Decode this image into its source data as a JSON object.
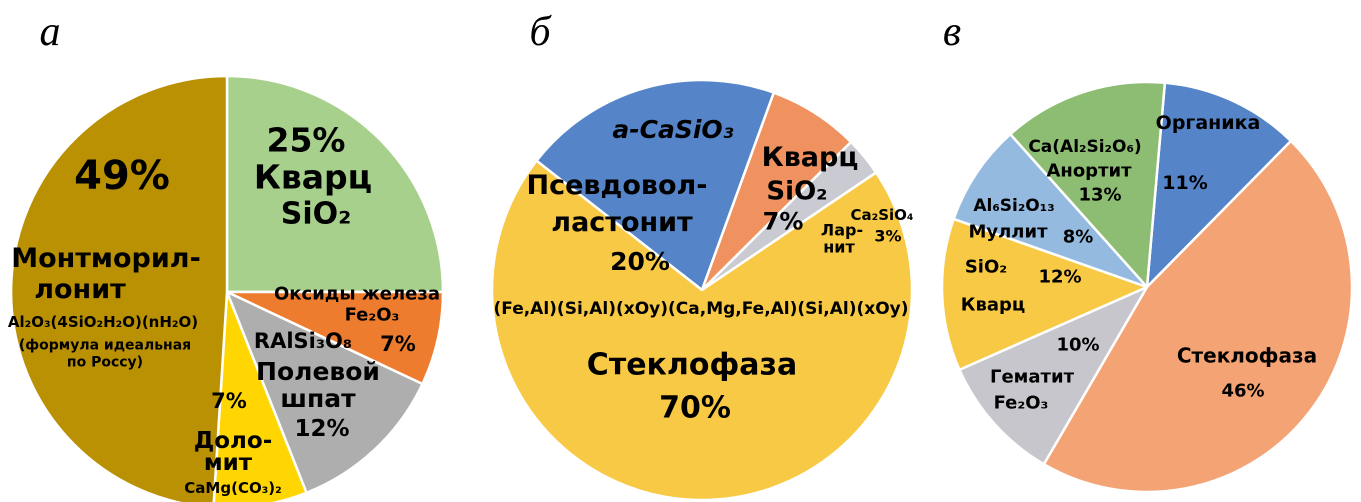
{
  "page": {
    "background": "#ffffff"
  },
  "panels": [
    {
      "letter": "а"
    },
    {
      "letter": "б"
    },
    {
      "letter": "в"
    }
  ],
  "chart_data": [
    {
      "type": "pie",
      "panel": "а",
      "title": "",
      "start_angle_deg": 0,
      "direction": "clockwise",
      "slices": [
        {
          "name": "Кварц",
          "formula": "SiO₂",
          "value": 25,
          "color": "#a6d08c"
        },
        {
          "name": "Оксиды железа",
          "formula": "Fe₂O₃",
          "value": 7,
          "color": "#ee7c2f"
        },
        {
          "name": "Полевой шпат",
          "formula": "RAlSi₃O₈",
          "value": 12,
          "color": "#aeaeae"
        },
        {
          "name": "Доломит",
          "formula": "CaMg(CO₃)₂",
          "value": 7,
          "color": "#ffd502"
        },
        {
          "name": "Монтмориллонит",
          "formula": "Al₂O₃(4SiO₂H₂O)(nH₂O) (формула идеальная по Россу)",
          "value": 49,
          "color": "#bb9104"
        }
      ]
    },
    {
      "type": "pie",
      "panel": "б",
      "title": "",
      "start_angle_deg": -52,
      "direction": "clockwise",
      "slices": [
        {
          "name": "Псевдоволластонит",
          "formula": "а-CaSiO₃",
          "value": 20,
          "color": "#5585c8"
        },
        {
          "name": "Кварц",
          "formula": "SiO₂",
          "value": 7,
          "color": "#ef9260"
        },
        {
          "name": "Ларнит",
          "formula": "Ca₂SiO₄",
          "value": 3,
          "color": "#c9cad2"
        },
        {
          "name": "Стеклофаза",
          "formula": "(Fe,Al)(Si,Al)(xOy)(Ca,Mg,Fe,Al)(Si,Al)(xOy)",
          "value": 70,
          "color": "#f8c944"
        }
      ]
    },
    {
      "type": "pie",
      "panel": "в",
      "title": "",
      "start_angle_deg": 5,
      "direction": "clockwise",
      "slices": [
        {
          "name": "Органика",
          "formula": "",
          "value": 11,
          "color": "#5585c8"
        },
        {
          "name": "Стеклофаза",
          "formula": "",
          "value": 46,
          "color": "#f4a375"
        },
        {
          "name": "Гематит",
          "formula": "Fe₂O₃",
          "value": 10,
          "color": "#c6c6cc"
        },
        {
          "name": "Кварц",
          "formula": "SiO₂",
          "value": 12,
          "color": "#f8c944"
        },
        {
          "name": "Муллит",
          "formula": "Al₆Si₂O₁₃",
          "value": 8,
          "color": "#95badf"
        },
        {
          "name": "Анортит",
          "formula": "Ca(Al₂Si₂O₆)",
          "value": 13,
          "color": "#8cbd72"
        }
      ]
    }
  ],
  "labels": {
    "a": {
      "mont_pct": "49%",
      "mont_name1": "Монтморил-",
      "mont_name2": "лонит",
      "mont_formula": "Al₂O₃(4SiO₂H₂O)(nH₂O)",
      "mont_note1": "(формула идеальная",
      "mont_note2": "по Россу)",
      "quartz_pct": "25%",
      "quartz_name": "Кварц",
      "quartz_formula": "SiO₂",
      "iron_name": "Оксиды железа",
      "iron_formula": "Fe₂O₃",
      "iron_pct": "7%",
      "feldspar_formula": "RAlSi₃O₈",
      "feldspar_name1": "Полевой",
      "feldspar_name2": "шпат",
      "feldspar_pct": "12%",
      "dolomite_pct": "7%",
      "dolomite_name1": "Доло-",
      "dolomite_name2": "мит",
      "dolomite_formula": "CaMg(CO₃)₂"
    },
    "b": {
      "pwol_formula": "а-CaSiO₃",
      "pwol_name1": "Псевдовол-",
      "pwol_name2": "ластонит",
      "pwol_pct": "20%",
      "quartz_name": "Кварц",
      "quartz_formula": "SiO₂",
      "quartz_pct": "7%",
      "larnite_name1": "Лар-",
      "larnite_name2": "нит",
      "larnite_formula": "Ca₂SiO₄",
      "larnite_pct": "3%",
      "glass_formula": "(Fe,Al)(Si,Al)(xOy)(Ca,Mg,Fe,Al)(Si,Al)(xOy)",
      "glass_name": "Стеклофаза",
      "glass_pct": "70%"
    },
    "v": {
      "anorthite_formula": "Ca(Al₂Si₂O₆)",
      "anorthite_name": "Анортит",
      "anorthite_pct": "13%",
      "organics_name": "Органика",
      "organics_pct": "11%",
      "mullite_formula": "Al₆Si₂O₁₃",
      "mullite_name": "Муллит",
      "mullite_pct": "8%",
      "quartz_formula": "SiO₂",
      "quartz_pct": "12%",
      "quartz_name": "Кварц",
      "hematite_pct": "10%",
      "hematite_name": "Гематит",
      "hematite_formula": "Fe₂O₃",
      "glass_name": "Стеклофаза",
      "glass_pct": "46%"
    }
  }
}
